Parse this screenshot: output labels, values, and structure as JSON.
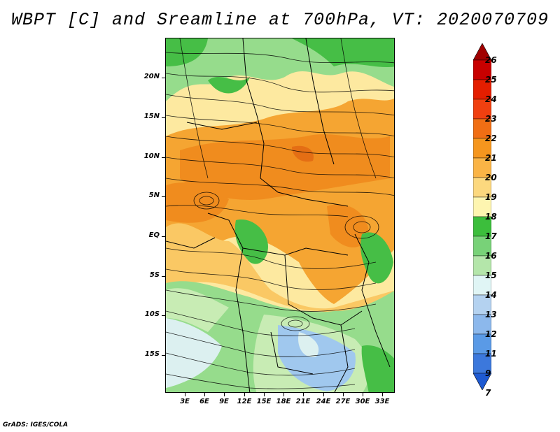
{
  "title": "WBPT [C] and Sreamline at 700hPa, VT: 2020070709",
  "footer": "GrADS: IGES/COLA",
  "latitude_labels": [
    "20N",
    "15N",
    "10N",
    "5N",
    "EQ",
    "5S",
    "10S",
    "15S"
  ],
  "longitude_labels": [
    "3E",
    "6E",
    "9E",
    "12E",
    "15E",
    "18E",
    "21E",
    "24E",
    "27E",
    "30E",
    "33E"
  ],
  "colorbar": {
    "labels": [
      "26",
      "25",
      "24",
      "23",
      "22",
      "21",
      "20",
      "19",
      "18",
      "17",
      "16",
      "15",
      "14",
      "13",
      "12",
      "11",
      "9",
      "7"
    ],
    "colors": [
      "#a00000",
      "#c80000",
      "#e41e00",
      "#f04010",
      "#f06e14",
      "#f5961e",
      "#fab446",
      "#fcd87e",
      "#fef5b0",
      "#3cbe3c",
      "#78d278",
      "#b4e6aa",
      "#e0f5f5",
      "#b4d2f0",
      "#8cb8ec",
      "#5a9ae6",
      "#3c78dc",
      "#1e5ad2"
    ]
  },
  "field_colors": {
    "orange_dark": "#f08c1e",
    "orange": "#f5a532",
    "light_orange": "#fac864",
    "yellow": "#fde9a0",
    "green": "#46be46",
    "light_green": "#96dc8c",
    "pale_green": "#c8ecb4",
    "pale_blue": "#dcf0f0",
    "blue": "#a0c8ee"
  }
}
